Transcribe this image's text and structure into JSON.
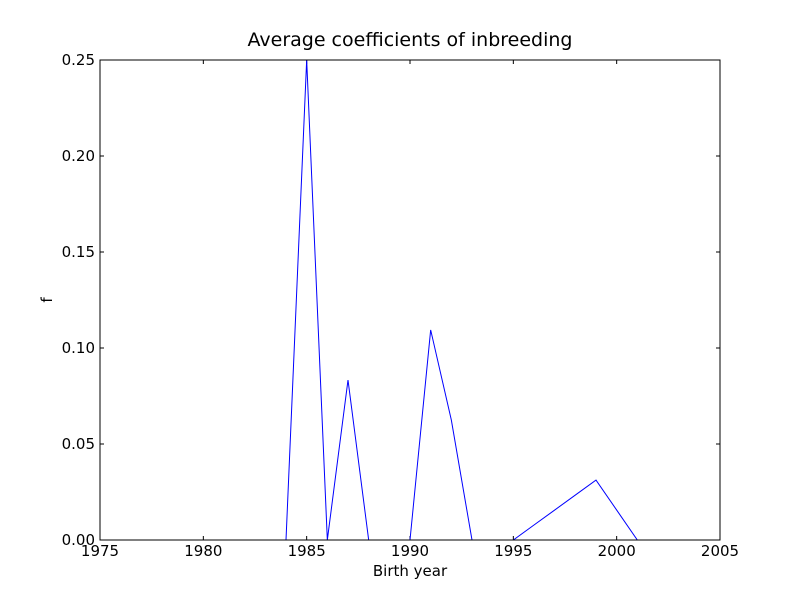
{
  "chart_data": {
    "type": "line",
    "title": "Average coefficients of inbreeding",
    "xlabel": "Birth year",
    "ylabel": "f",
    "xlim": [
      1975,
      2005
    ],
    "ylim": [
      0.0,
      0.25
    ],
    "x_ticks": [
      1975,
      1980,
      1985,
      1990,
      1995,
      2000,
      2005
    ],
    "x_tick_labels": [
      "1975",
      "1980",
      "1985",
      "1990",
      "1995",
      "2000",
      "2005"
    ],
    "y_ticks": [
      0.0,
      0.05,
      0.1,
      0.15,
      0.2,
      0.25
    ],
    "y_tick_labels": [
      "0.00",
      "0.05",
      "0.10",
      "0.15",
      "0.20",
      "0.25"
    ],
    "grid": false,
    "series": [
      {
        "name": "f",
        "color": "#0000ff",
        "x": [
          1976,
          1977,
          1978,
          1979,
          1980,
          1981,
          1982,
          1983,
          1984,
          1985,
          1986,
          1987,
          1988,
          1989,
          1990,
          1991,
          1992,
          1993,
          1994,
          1995,
          1996,
          1997,
          1998,
          1999,
          2000,
          2001
        ],
        "y": [
          0.0,
          0.0,
          0.0,
          0.0,
          0.0,
          0.0,
          0.0,
          0.0,
          0.0,
          0.25,
          0.0,
          0.0833,
          0.0,
          0.0,
          0.0,
          0.1094,
          0.0625,
          0.0,
          0.0,
          0.0,
          0.0078,
          0.0156,
          0.0234,
          0.0312,
          0.0156,
          0.0
        ]
      }
    ]
  }
}
